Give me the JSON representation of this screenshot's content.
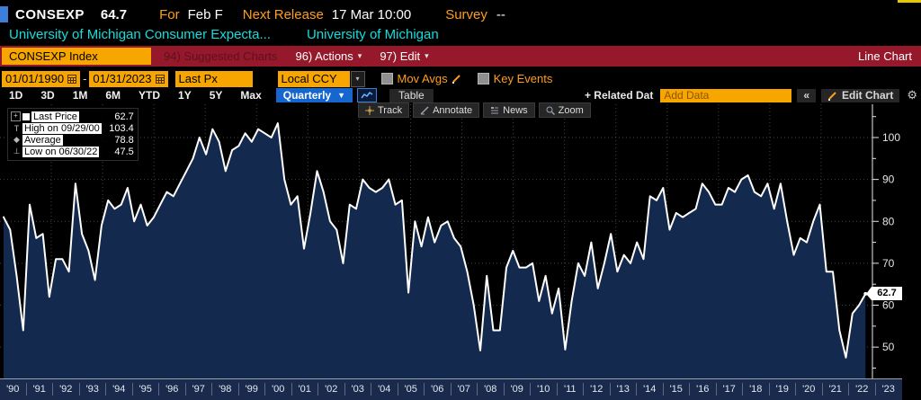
{
  "header": {
    "ticker": "CONSEXP",
    "last_value": "64.7",
    "for_label": "For",
    "period": "Feb F",
    "next_release_label": "Next Release",
    "next_release_value": "17 Mar 10:00",
    "survey_label": "Survey",
    "survey_value": "--",
    "description": "University of Michigan Consumer Expecta...",
    "source": "University of Michigan"
  },
  "menubar": {
    "security": "CONSEXP Index",
    "suggested_charts": "94) Suggested Charts",
    "actions": "96) Actions",
    "edit": "97) Edit",
    "view_label": "Line Chart"
  },
  "filters": {
    "date_from": "01/01/1990",
    "dash": "-",
    "date_to": "01/31/2023",
    "price_field": "Last Px",
    "currency": "Local CCY",
    "mov_avgs_label": "Mov Avgs",
    "key_events_label": "Key Events"
  },
  "toolbar": {
    "ranges": [
      "1D",
      "3D",
      "1M",
      "6M",
      "YTD",
      "1Y",
      "5Y",
      "Max"
    ],
    "frequency": "Quarterly",
    "table_label": "Table",
    "related_label": "+ Related Dat",
    "add_data_placeholder": "Add Data",
    "collapse_label": "«",
    "edit_chart_label": "Edit Chart",
    "tools": [
      "Track",
      "Annotate",
      "News",
      "Zoom"
    ]
  },
  "legend": {
    "items": [
      {
        "label": "Last Price",
        "value": "62.7"
      },
      {
        "label": "High on 09/29/00",
        "value": "103.4"
      },
      {
        "label": "Average",
        "value": "78.8"
      },
      {
        "label": "Low on 06/30/22",
        "value": "47.5"
      }
    ]
  },
  "axis": {
    "last_price_badge": "62.7"
  },
  "chart_data": {
    "type": "area",
    "title": "CONSEXP Index - University of Michigan Consumer Expectations",
    "frequency": "Quarterly",
    "x_start": 1990.25,
    "x_step": 0.25,
    "ylim": [
      42,
      109
    ],
    "yticks": [
      50,
      60,
      70,
      80,
      90,
      100
    ],
    "grid": "dotted",
    "legend_position": "top-left",
    "high": {
      "date": "09/29/00",
      "value": 103.4
    },
    "low": {
      "date": "06/30/22",
      "value": 47.5
    },
    "average": 78.8,
    "last_price": 62.7,
    "x_axis_years": [
      "'90",
      "'91",
      "'92",
      "'93",
      "'94",
      "'95",
      "'96",
      "'97",
      "'98",
      "'99",
      "'00",
      "'01",
      "'02",
      "'03",
      "'04",
      "'05",
      "'06",
      "'07",
      "'08",
      "'09",
      "'10",
      "'11",
      "'12",
      "'13",
      "'14",
      "'15",
      "'16",
      "'17",
      "'18",
      "'19",
      "'20",
      "'21",
      "'22",
      "'23"
    ],
    "values": [
      81,
      78,
      67,
      54,
      84,
      76,
      77,
      62,
      71,
      71,
      68,
      89,
      77,
      73,
      66,
      79,
      85,
      83,
      84,
      88,
      80,
      84,
      79,
      81,
      84,
      87,
      86,
      89,
      92,
      95,
      100,
      96,
      102,
      99,
      92,
      97,
      98,
      101,
      99,
      102,
      101,
      100,
      103.4,
      90,
      84,
      86,
      73.5,
      82,
      92,
      87,
      80,
      78,
      70,
      84,
      83,
      90,
      88,
      87,
      88,
      90,
      84,
      85,
      63,
      80,
      74,
      81,
      75,
      79,
      80,
      76,
      74,
      68,
      60,
      49.2,
      67,
      54,
      54,
      69,
      73,
      69,
      69,
      70,
      61,
      67,
      58,
      64,
      49.4,
      61,
      70,
      67,
      75,
      64,
      70,
      77,
      68,
      72,
      70,
      75,
      71,
      86,
      85,
      88,
      78,
      82,
      81,
      82,
      83,
      89,
      87,
      84,
      84,
      88,
      87,
      90,
      91,
      87,
      86,
      89,
      83,
      89,
      80,
      72,
      76,
      75,
      80,
      84,
      68,
      68,
      54,
      47.5,
      58,
      60,
      62.7
    ],
    "line_color": "#ffffff",
    "fill_color": "#14294e"
  }
}
